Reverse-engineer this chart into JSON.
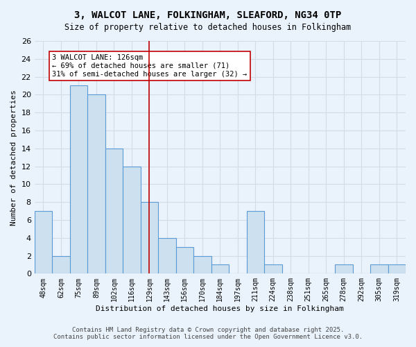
{
  "title1": "3, WALCOT LANE, FOLKINGHAM, SLEAFORD, NG34 0TP",
  "title2": "Size of property relative to detached houses in Folkingham",
  "xlabel": "Distribution of detached houses by size in Folkingham",
  "ylabel": "Number of detached properties",
  "categories": [
    "48sqm",
    "62sqm",
    "75sqm",
    "89sqm",
    "102sqm",
    "116sqm",
    "129sqm",
    "143sqm",
    "156sqm",
    "170sqm",
    "184sqm",
    "197sqm",
    "211sqm",
    "224sqm",
    "238sqm",
    "251sqm",
    "265sqm",
    "278sqm",
    "292sqm",
    "305sqm",
    "319sqm"
  ],
  "values": [
    7,
    2,
    21,
    20,
    14,
    12,
    8,
    4,
    3,
    2,
    1,
    0,
    7,
    1,
    0,
    0,
    0,
    1,
    0,
    1,
    1
  ],
  "bar_color": "#cce0f0",
  "bar_edge_color": "#5b9bd5",
  "reference_line_x": 6,
  "reference_line_color": "#c00000",
  "annotation_text": "3 WALCOT LANE: 126sqm\n← 69% of detached houses are smaller (71)\n31% of semi-detached houses are larger (32) →",
  "annotation_box_color": "#ffffff",
  "annotation_box_edge_color": "#c00000",
  "ylim": [
    0,
    26
  ],
  "yticks": [
    0,
    2,
    4,
    6,
    8,
    10,
    12,
    14,
    16,
    18,
    20,
    22,
    24,
    26
  ],
  "grid_color": "#d0dce8",
  "bg_color": "#eaf2fb",
  "footer1": "Contains HM Land Registry data © Crown copyright and database right 2025.",
  "footer2": "Contains public sector information licensed under the Open Government Licence v3.0."
}
